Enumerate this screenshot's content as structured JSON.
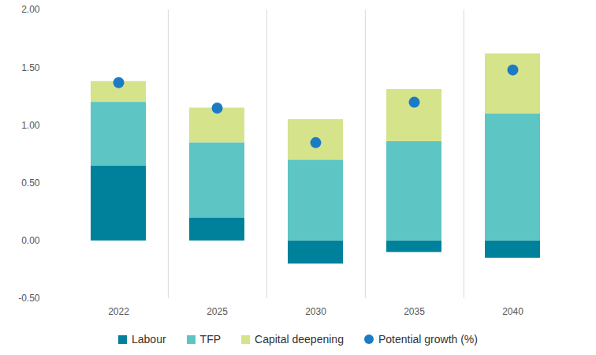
{
  "chart_data": {
    "type": "bar",
    "stacked": true,
    "grid": true,
    "legend": "bottom",
    "categories": [
      "2022",
      "2025",
      "2030",
      "2035",
      "2040"
    ],
    "series": [
      {
        "name": "Labour",
        "type": "bar",
        "color": "#00819b",
        "values": [
          0.65,
          0.2,
          -0.2,
          -0.1,
          -0.15
        ]
      },
      {
        "name": "TFP",
        "type": "bar",
        "color": "#5dc5c3",
        "values": [
          0.55,
          0.65,
          0.7,
          0.86,
          1.1
        ]
      },
      {
        "name": "Capital deepening",
        "type": "bar",
        "color": "#d5e38b",
        "values": [
          0.18,
          0.3,
          0.35,
          0.45,
          0.52
        ]
      },
      {
        "name": "Potential growth (%)",
        "type": "scatter",
        "marker": "circle",
        "color": "#1b7bc4",
        "values": [
          1.37,
          1.15,
          0.85,
          1.2,
          1.48
        ]
      }
    ],
    "ylim": [
      -0.5,
      2.0
    ],
    "yticks": [
      {
        "value": -0.5,
        "label": "-0.50"
      },
      {
        "value": 0,
        "label": "0.00"
      },
      {
        "value": 0.5,
        "label": "0.50"
      },
      {
        "value": 1.0,
        "label": "1.00"
      },
      {
        "value": 1.5,
        "label": "1.50"
      },
      {
        "value": 2.0,
        "label": "2.00"
      }
    ]
  }
}
